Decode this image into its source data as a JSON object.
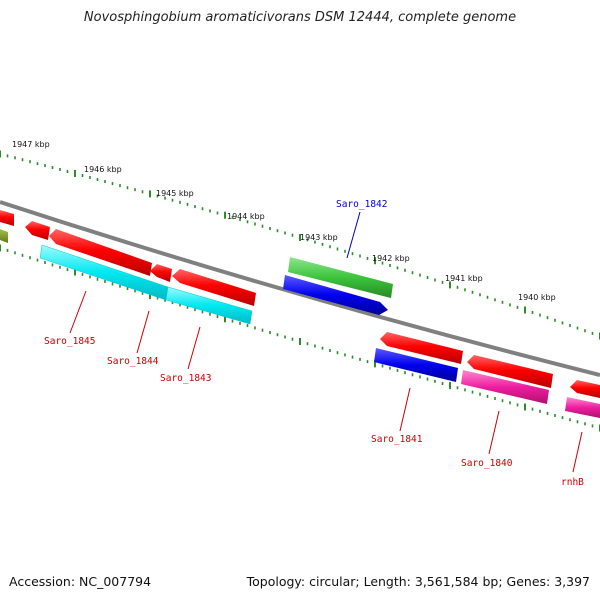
{
  "title": "Novosphingobium aromaticivorans DSM 12444, complete genome",
  "footer": {
    "accession": "Accession: NC_007794",
    "summary": "Topology: circular; Length: 3,561,584 bp; Genes: 3,397"
  },
  "ruler": [
    {
      "label": "1947 kbp"
    },
    {
      "label": "1946 kbp"
    },
    {
      "label": "1945 kbp"
    },
    {
      "label": "1944 kbp"
    },
    {
      "label": "1943 kbp"
    },
    {
      "label": "1942 kbp"
    },
    {
      "label": "1941 kbp"
    },
    {
      "label": "1940 kbp"
    }
  ],
  "genes": [
    {
      "label": "Saro_1842",
      "color": "#0000c8"
    },
    {
      "label": "Saro_1845",
      "color": "#cc0000"
    },
    {
      "label": "Saro_1844",
      "color": "#cc0000"
    },
    {
      "label": "Saro_1843",
      "color": "#cc0000"
    },
    {
      "label": "Saro_1841",
      "color": "#cc0000"
    },
    {
      "label": "Saro_1840",
      "color": "#cc0000"
    },
    {
      "label": "rnhB",
      "color": "#cc0000"
    }
  ],
  "feature_colors": {
    "cds": "#ff0000",
    "rna_cyan": "#00e5ee",
    "rna_green": "#3cc43c",
    "rna_blue": "#0000ee",
    "misc_magenta": "#ee1ea0",
    "backbone": "#808080",
    "ruler": "#2e8b2e"
  }
}
